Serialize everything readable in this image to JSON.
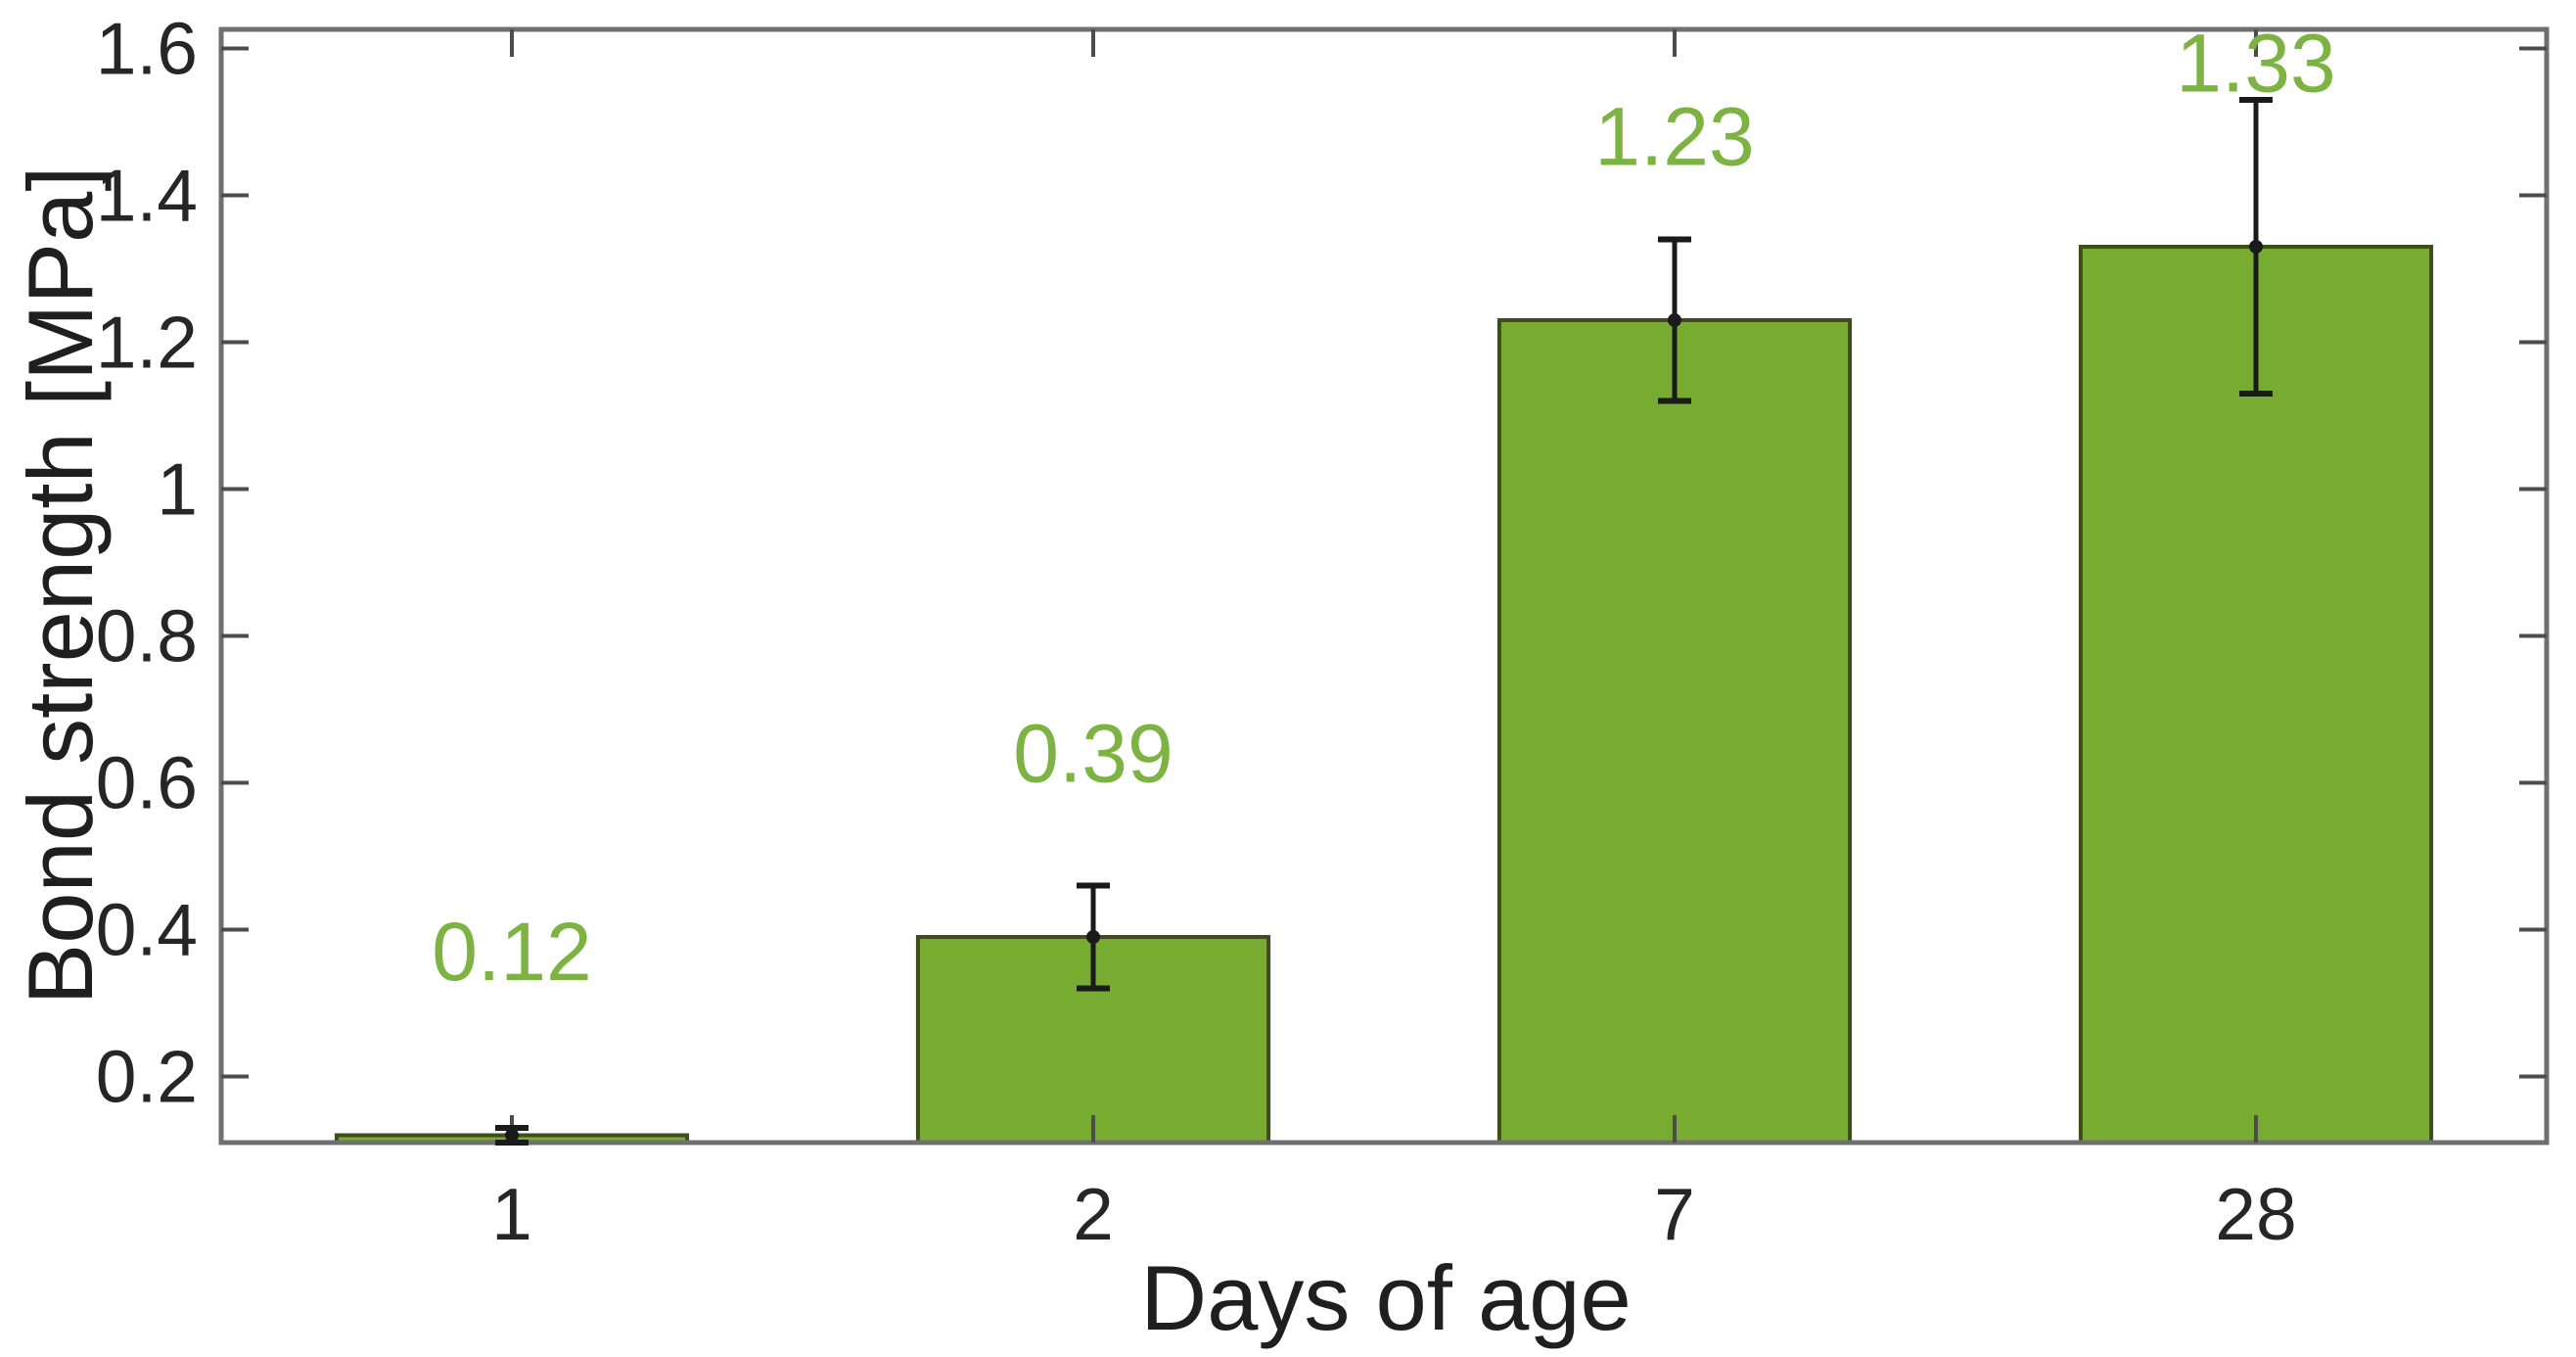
{
  "chart_data": {
    "type": "bar",
    "title": "",
    "xlabel": "Days of age",
    "ylabel": "Bond strength [MPa]",
    "categories": [
      "1",
      "2",
      "7",
      "28"
    ],
    "values": [
      0.12,
      0.39,
      1.23,
      1.33
    ],
    "errors": [
      0.01,
      0.07,
      0.11,
      0.2
    ],
    "value_labels": [
      "0.12",
      "0.39",
      "1.23",
      "1.33"
    ],
    "ylim": [
      0.11,
      1.626
    ],
    "yticks": {
      "values": [
        0.2,
        0.4,
        0.6,
        0.8,
        1,
        1.2,
        1.4,
        1.6
      ],
      "labels": [
        "0.2",
        "0.4",
        "0.6",
        "0.8",
        "1",
        "1.2",
        "1.4",
        "1.6"
      ]
    },
    "grid": false,
    "legend": null,
    "box": true,
    "tick_direction": "in",
    "error_marker": "dot",
    "colors": {
      "bar_fill": "#77ac30",
      "bar_edge": "#3f4d1d",
      "value_label": "#7cb342",
      "frame": "#6f6f6f",
      "tick": "#4c4c4c",
      "tick_text": "#262626",
      "axis_label_text": "#1f1f1f",
      "error_bar": "#1a1a1a",
      "background": "#ffffff"
    }
  }
}
